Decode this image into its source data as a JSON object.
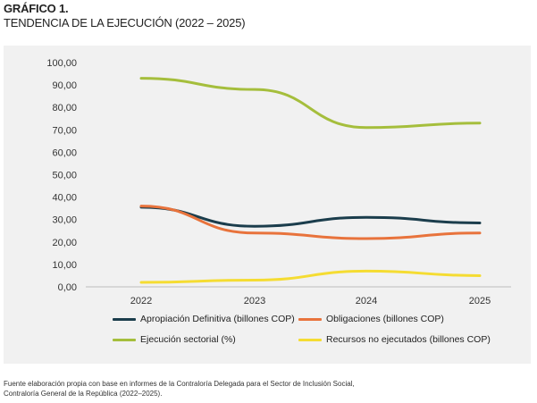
{
  "header": {
    "label": "GRÁFICO 1.",
    "title": "TENDENCIA DE LA EJECUCIÓN (2022 – 2025)"
  },
  "footer": {
    "line1": "Fuente elaboración propia con base en informes de la Contraloría Delegada para el Sector de Inclusión Social,",
    "line2": "Contraloría General de la República (2022–2025)."
  },
  "chart_data": {
    "type": "line",
    "categories": [
      "2022",
      "2023",
      "2024",
      "2025"
    ],
    "y_ticks": [
      "0,00",
      "10,00",
      "20,00",
      "30,00",
      "40,00",
      "50,00",
      "60,00",
      "70,00",
      "80,00",
      "90,00",
      "100,00"
    ],
    "ylim": [
      0,
      100
    ],
    "grid": "none",
    "legend_position": "bottom",
    "series": [
      {
        "name": "Apropiación Definitiva (billones COP)",
        "color": "#1b3d4c",
        "values": [
          35.5,
          27,
          31,
          28.5
        ]
      },
      {
        "name": "Obligaciones (billones COP)",
        "color": "#e8733c",
        "values": [
          36,
          24,
          21.5,
          24
        ]
      },
      {
        "name": "Ejecución sectorial (%)",
        "color": "#a5be3c",
        "values": [
          93,
          88,
          71,
          73
        ]
      },
      {
        "name": "Recursos no ejecutados (billones COP)",
        "color": "#f5dc32",
        "values": [
          2,
          3,
          7,
          5
        ]
      }
    ]
  }
}
